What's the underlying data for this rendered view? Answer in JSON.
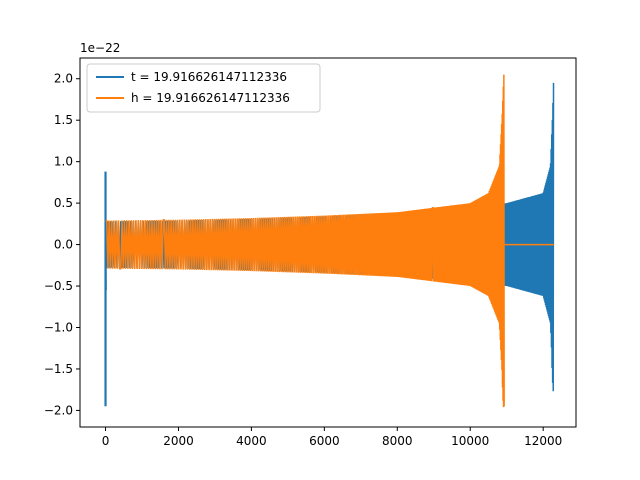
{
  "chart_data": {
    "type": "line",
    "title": "",
    "xlabel": "",
    "ylabel": "",
    "y_offset_label": "1e−22",
    "xlim": [
      -700,
      12900
    ],
    "ylim": [
      -2.2,
      2.25
    ],
    "x_ticks": [
      0,
      2000,
      4000,
      6000,
      8000,
      10000,
      12000
    ],
    "x_tick_labels": [
      "0",
      "2000",
      "4000",
      "6000",
      "8000",
      "10000",
      "12000"
    ],
    "y_ticks": [
      -2.0,
      -1.5,
      -1.0,
      -0.5,
      0.0,
      0.5,
      1.0,
      1.5,
      2.0
    ],
    "y_tick_labels": [
      "−2.0",
      "−1.5",
      "−1.0",
      "−0.5",
      "0.0",
      "0.5",
      "1.0",
      "1.5",
      "2.0"
    ],
    "grid": false,
    "legend_position": "top-left",
    "series": [
      {
        "name": "t = 19.916626147112336",
        "color": "#1f77b4",
        "description": "oscillating gravitational-wave strain",
        "spike_at_x": 0,
        "spike_max": 0.88,
        "spike_min": -1.95,
        "x_start": 0,
        "x_end": 12290,
        "envelope_x": [
          0,
          2000,
          4000,
          6000,
          8000,
          10000,
          11000,
          12000,
          12200,
          12260,
          12290
        ],
        "envelope_amplitude": [
          0.28,
          0.29,
          0.31,
          0.34,
          0.38,
          0.45,
          0.5,
          0.62,
          0.95,
          1.6,
          2.05
        ],
        "min_at_end": -1.75
      },
      {
        "name": "h = 19.916626147112336",
        "color": "#ff7f0e",
        "description": "oscillating gravitational-wave strain, zero after merger",
        "x_start": 0,
        "x_end": 12290,
        "envelope_x": [
          0,
          2000,
          4000,
          6000,
          8000,
          10000,
          10500,
          10800,
          10880,
          10920
        ],
        "envelope_amplitude": [
          0.29,
          0.3,
          0.32,
          0.35,
          0.39,
          0.5,
          0.62,
          0.95,
          1.6,
          2.05
        ],
        "min_at_peak": -1.95,
        "zero_after_x": 10930
      }
    ]
  }
}
